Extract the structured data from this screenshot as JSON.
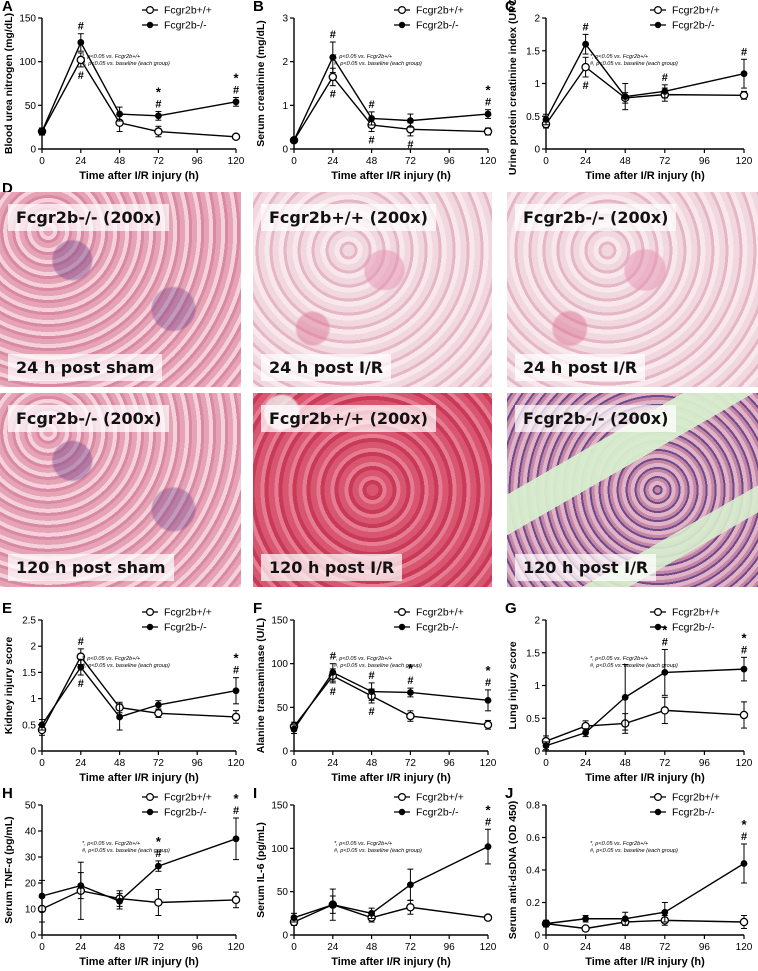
{
  "legend": {
    "wt": "Fcgr2b+/+",
    "ko": "Fcgr2b-/-"
  },
  "note_star": "*, p<0.05 vs. Fcgr2b+/+",
  "note_hash": "#, p<0.05 vs. baseline (each group)",
  "xlabel": "Time after I/R injury (h)",
  "colors": {
    "line": "#000000",
    "open_fill": "#ffffff"
  },
  "chart_data": [
    {
      "panel": "A",
      "type": "line",
      "ylabel": "Blood urea nitrogen (mg/dL)",
      "x": [
        0,
        24,
        48,
        72,
        96,
        120
      ],
      "xticks": [
        0,
        24,
        48,
        72,
        96,
        120
      ],
      "xlim": [
        0,
        120
      ],
      "ylim": [
        0,
        150
      ],
      "yticks": [
        0,
        50,
        100,
        150
      ],
      "series": [
        {
          "name": "Fcgr2b+/+",
          "marker": "open",
          "x": [
            0,
            24,
            48,
            72,
            120
          ],
          "y": [
            20,
            102,
            30,
            20,
            14
          ],
          "err": [
            4,
            8,
            10,
            6,
            2
          ]
        },
        {
          "name": "Fcgr2b-/-",
          "marker": "filled",
          "x": [
            0,
            24,
            48,
            72,
            120
          ],
          "y": [
            20,
            122,
            40,
            38,
            54
          ],
          "err": [
            4,
            10,
            8,
            5,
            5
          ]
        }
      ],
      "annotations": [
        {
          "x": 24,
          "t": "#"
        },
        {
          "x": 24,
          "t": "#",
          "below": true
        },
        {
          "x": 72,
          "t": "#"
        },
        {
          "x": 72,
          "t": "*"
        },
        {
          "x": 120,
          "t": "#"
        },
        {
          "x": 120,
          "t": "*"
        }
      ]
    },
    {
      "panel": "B",
      "type": "line",
      "ylabel": "Serum creatinine (mg/dL)",
      "x": [
        0,
        24,
        48,
        72,
        96,
        120
      ],
      "xticks": [
        0,
        24,
        48,
        72,
        96,
        120
      ],
      "xlim": [
        0,
        120
      ],
      "ylim": [
        0,
        3
      ],
      "yticks": [
        0,
        1,
        2,
        3
      ],
      "series": [
        {
          "name": "Fcgr2b+/+",
          "marker": "open",
          "x": [
            0,
            24,
            48,
            72,
            120
          ],
          "y": [
            0.2,
            1.65,
            0.55,
            0.45,
            0.4
          ],
          "err": [
            0.05,
            0.2,
            0.15,
            0.15,
            0.08
          ]
        },
        {
          "name": "Fcgr2b-/-",
          "marker": "filled",
          "x": [
            0,
            24,
            48,
            72,
            120
          ],
          "y": [
            0.2,
            2.1,
            0.7,
            0.65,
            0.8
          ],
          "err": [
            0.05,
            0.35,
            0.15,
            0.15,
            0.1
          ]
        }
      ],
      "annotations": [
        {
          "x": 24,
          "t": "#"
        },
        {
          "x": 24,
          "t": "#",
          "below": true
        },
        {
          "x": 48,
          "t": "#"
        },
        {
          "x": 48,
          "t": "#",
          "below": true
        },
        {
          "x": 72,
          "t": "#",
          "below": true
        },
        {
          "x": 120,
          "t": "#"
        },
        {
          "x": 120,
          "t": "*"
        }
      ]
    },
    {
      "panel": "C",
      "type": "line",
      "ylabel": "Urine protein creatinine index (UPCI)",
      "x": [
        0,
        24,
        48,
        72,
        96,
        120
      ],
      "xticks": [
        0,
        24,
        48,
        72,
        96,
        120
      ],
      "xlim": [
        0,
        120
      ],
      "ylim": [
        0,
        2
      ],
      "yticks": [
        0,
        0.5,
        1,
        1.5,
        2
      ],
      "series": [
        {
          "name": "Fcgr2b+/+",
          "marker": "open",
          "x": [
            0,
            24,
            48,
            72,
            120
          ],
          "y": [
            0.38,
            1.25,
            0.78,
            0.83,
            0.82
          ],
          "err": [
            0.06,
            0.15,
            0.08,
            0.1,
            0.06
          ]
        },
        {
          "name": "Fcgr2b-/-",
          "marker": "filled",
          "x": [
            0,
            24,
            48,
            72,
            120
          ],
          "y": [
            0.45,
            1.6,
            0.8,
            0.88,
            1.15
          ],
          "err": [
            0.08,
            0.15,
            0.2,
            0.1,
            0.22
          ]
        }
      ],
      "annotations": [
        {
          "x": 24,
          "t": "#"
        },
        {
          "x": 24,
          "t": "#",
          "below": true
        },
        {
          "x": 72,
          "t": "#"
        },
        {
          "x": 120,
          "t": "#"
        }
      ]
    },
    {
      "panel": "E",
      "type": "line",
      "ylabel": "Kidney injury score",
      "x": [
        0,
        24,
        48,
        72,
        96,
        120
      ],
      "xticks": [
        0,
        24,
        48,
        72,
        96,
        120
      ],
      "xlim": [
        0,
        120
      ],
      "ylim": [
        0,
        2.5
      ],
      "yticks": [
        0,
        0.5,
        1,
        1.5,
        2,
        2.5
      ],
      "series": [
        {
          "name": "Fcgr2b+/+",
          "marker": "open",
          "x": [
            0,
            24,
            48,
            72,
            120
          ],
          "y": [
            0.4,
            1.8,
            0.83,
            0.72,
            0.65
          ],
          "err": [
            0.1,
            0.15,
            0.1,
            0.08,
            0.12
          ]
        },
        {
          "name": "Fcgr2b-/-",
          "marker": "filled",
          "x": [
            0,
            24,
            48,
            72,
            120
          ],
          "y": [
            0.5,
            1.6,
            0.65,
            0.88,
            1.15
          ],
          "err": [
            0.1,
            0.15,
            0.25,
            0.08,
            0.25
          ]
        }
      ],
      "annotations": [
        {
          "x": 24,
          "t": "#"
        },
        {
          "x": 24,
          "t": "#",
          "below": true
        },
        {
          "x": 120,
          "t": "#"
        },
        {
          "x": 120,
          "t": "*"
        }
      ]
    },
    {
      "panel": "F",
      "type": "line",
      "ylabel": "Alanine transaminase (U/L)",
      "x": [
        0,
        24,
        48,
        72,
        96,
        120
      ],
      "xticks": [
        0,
        24,
        48,
        72,
        96,
        120
      ],
      "xlim": [
        0,
        120
      ],
      "ylim": [
        0,
        150
      ],
      "yticks": [
        0,
        50,
        100,
        150
      ],
      "series": [
        {
          "name": "Fcgr2b+/+",
          "marker": "open",
          "x": [
            0,
            24,
            48,
            72,
            120
          ],
          "y": [
            28,
            86,
            63,
            40,
            30
          ],
          "err": [
            5,
            8,
            8,
            6,
            5
          ]
        },
        {
          "name": "Fcgr2b-/-",
          "marker": "filled",
          "x": [
            0,
            24,
            48,
            72,
            120
          ],
          "y": [
            25,
            90,
            68,
            67,
            58
          ],
          "err": [
            5,
            10,
            10,
            5,
            12
          ]
        }
      ],
      "annotations": [
        {
          "x": 24,
          "t": "#"
        },
        {
          "x": 24,
          "t": "#",
          "below": true
        },
        {
          "x": 48,
          "t": "#"
        },
        {
          "x": 48,
          "t": "#",
          "below": true
        },
        {
          "x": 72,
          "t": "#"
        },
        {
          "x": 72,
          "t": "*"
        },
        {
          "x": 120,
          "t": "#"
        },
        {
          "x": 120,
          "t": "*"
        }
      ]
    },
    {
      "panel": "G",
      "type": "line",
      "ylabel": "Lung injury score",
      "x": [
        0,
        24,
        48,
        72,
        96,
        120
      ],
      "xticks": [
        0,
        24,
        48,
        72,
        96,
        120
      ],
      "xlim": [
        0,
        120
      ],
      "ylim": [
        0,
        2
      ],
      "yticks": [
        0,
        0.5,
        1,
        1.5,
        2
      ],
      "series": [
        {
          "name": "Fcgr2b+/+",
          "marker": "open",
          "x": [
            0,
            24,
            48,
            72,
            120
          ],
          "y": [
            0.15,
            0.38,
            0.42,
            0.62,
            0.55
          ],
          "err": [
            0.08,
            0.08,
            0.15,
            0.2,
            0.2
          ]
        },
        {
          "name": "Fcgr2b-/-",
          "marker": "filled",
          "x": [
            0,
            24,
            48,
            72,
            120
          ],
          "y": [
            0.08,
            0.28,
            0.82,
            1.2,
            1.25
          ],
          "err": [
            0.06,
            0.06,
            0.5,
            0.35,
            0.18
          ]
        }
      ],
      "annotations": [
        {
          "x": 72,
          "t": "#"
        },
        {
          "x": 72,
          "t": "*"
        },
        {
          "x": 120,
          "t": "#"
        },
        {
          "x": 120,
          "t": "*"
        }
      ]
    },
    {
      "panel": "H",
      "type": "line",
      "ylabel": "Serum TNF-α (pg/mL)",
      "x": [
        0,
        24,
        48,
        72,
        96,
        120
      ],
      "xticks": [
        0,
        24,
        48,
        72,
        96,
        120
      ],
      "xlim": [
        0,
        120
      ],
      "ylim": [
        0,
        50
      ],
      "yticks": [
        0,
        10,
        20,
        30,
        40,
        50
      ],
      "series": [
        {
          "name": "Fcgr2b+/+",
          "marker": "open",
          "x": [
            0,
            24,
            48,
            72,
            120
          ],
          "y": [
            10,
            17,
            14,
            12.5,
            13.5
          ],
          "err": [
            5,
            11,
            3,
            5,
            3
          ]
        },
        {
          "name": "Fcgr2b-/-",
          "marker": "filled",
          "x": [
            0,
            24,
            48,
            72,
            120
          ],
          "y": [
            15,
            19,
            13,
            26.5,
            37
          ],
          "err": [
            6,
            5,
            3,
            2,
            8
          ]
        }
      ],
      "annotations": [
        {
          "x": 72,
          "t": "#"
        },
        {
          "x": 72,
          "t": "*"
        },
        {
          "x": 120,
          "t": "#"
        },
        {
          "x": 120,
          "t": "*"
        }
      ]
    },
    {
      "panel": "I",
      "type": "line",
      "ylabel": "Serum IL-6 (pg/mL)",
      "x": [
        0,
        24,
        48,
        72,
        96,
        120
      ],
      "xticks": [
        0,
        24,
        48,
        72,
        96,
        120
      ],
      "xlim": [
        0,
        120
      ],
      "ylim": [
        0,
        150
      ],
      "yticks": [
        0,
        50,
        100,
        150
      ],
      "series": [
        {
          "name": "Fcgr2b+/+",
          "marker": "open",
          "x": [
            0,
            24,
            48,
            72,
            120
          ],
          "y": [
            15,
            35,
            20,
            32,
            20
          ],
          "err": [
            4,
            10,
            5,
            8,
            3
          ]
        },
        {
          "name": "Fcgr2b-/-",
          "marker": "filled",
          "x": [
            0,
            24,
            48,
            72,
            120
          ],
          "y": [
            20,
            35,
            25,
            58,
            102
          ],
          "err": [
            5,
            18,
            6,
            18,
            20
          ]
        }
      ],
      "annotations": [
        {
          "x": 120,
          "t": "#"
        },
        {
          "x": 120,
          "t": "*"
        }
      ]
    },
    {
      "panel": "J",
      "type": "line",
      "ylabel": "Serum anti-dsDNA (OD 450)",
      "x": [
        0,
        24,
        48,
        72,
        96,
        120
      ],
      "xticks": [
        0,
        24,
        48,
        72,
        96,
        120
      ],
      "xlim": [
        0,
        120
      ],
      "ylim": [
        0,
        0.8
      ],
      "yticks": [
        0,
        0.2,
        0.4,
        0.6,
        0.8
      ],
      "series": [
        {
          "name": "Fcgr2b+/+",
          "marker": "open",
          "x": [
            0,
            24,
            48,
            72,
            120
          ],
          "y": [
            0.07,
            0.04,
            0.08,
            0.09,
            0.08
          ],
          "err": [
            0.02,
            0.01,
            0.02,
            0.03,
            0.04
          ]
        },
        {
          "name": "Fcgr2b-/-",
          "marker": "filled",
          "x": [
            0,
            24,
            48,
            72,
            120
          ],
          "y": [
            0.07,
            0.1,
            0.1,
            0.14,
            0.44
          ],
          "err": [
            0.02,
            0.02,
            0.04,
            0.06,
            0.12
          ]
        }
      ],
      "annotations": [
        {
          "x": 120,
          "t": "#"
        },
        {
          "x": 120,
          "t": "*"
        }
      ]
    }
  ],
  "micrographs": [
    {
      "genotype": "Fcgr2b-/- (200x)",
      "condition": "24 h post sham",
      "tone": "kidney-sham"
    },
    {
      "genotype": "Fcgr2b+/+ (200x)",
      "condition": "24 h post I/R",
      "tone": "kidney-pale"
    },
    {
      "genotype": "Fcgr2b-/- (200x)",
      "condition": "24 h post I/R",
      "tone": "kidney-pale"
    },
    {
      "genotype": "Fcgr2b-/- (200x)",
      "condition": "120 h post sham",
      "tone": "kidney-sham"
    },
    {
      "genotype": "Fcgr2b+/+ (200x)",
      "condition": "120 h post I/R",
      "tone": "kidney-red"
    },
    {
      "genotype": "Fcgr2b-/- (200x)",
      "condition": "120 h post I/R",
      "tone": "kidney-inflamed"
    }
  ]
}
